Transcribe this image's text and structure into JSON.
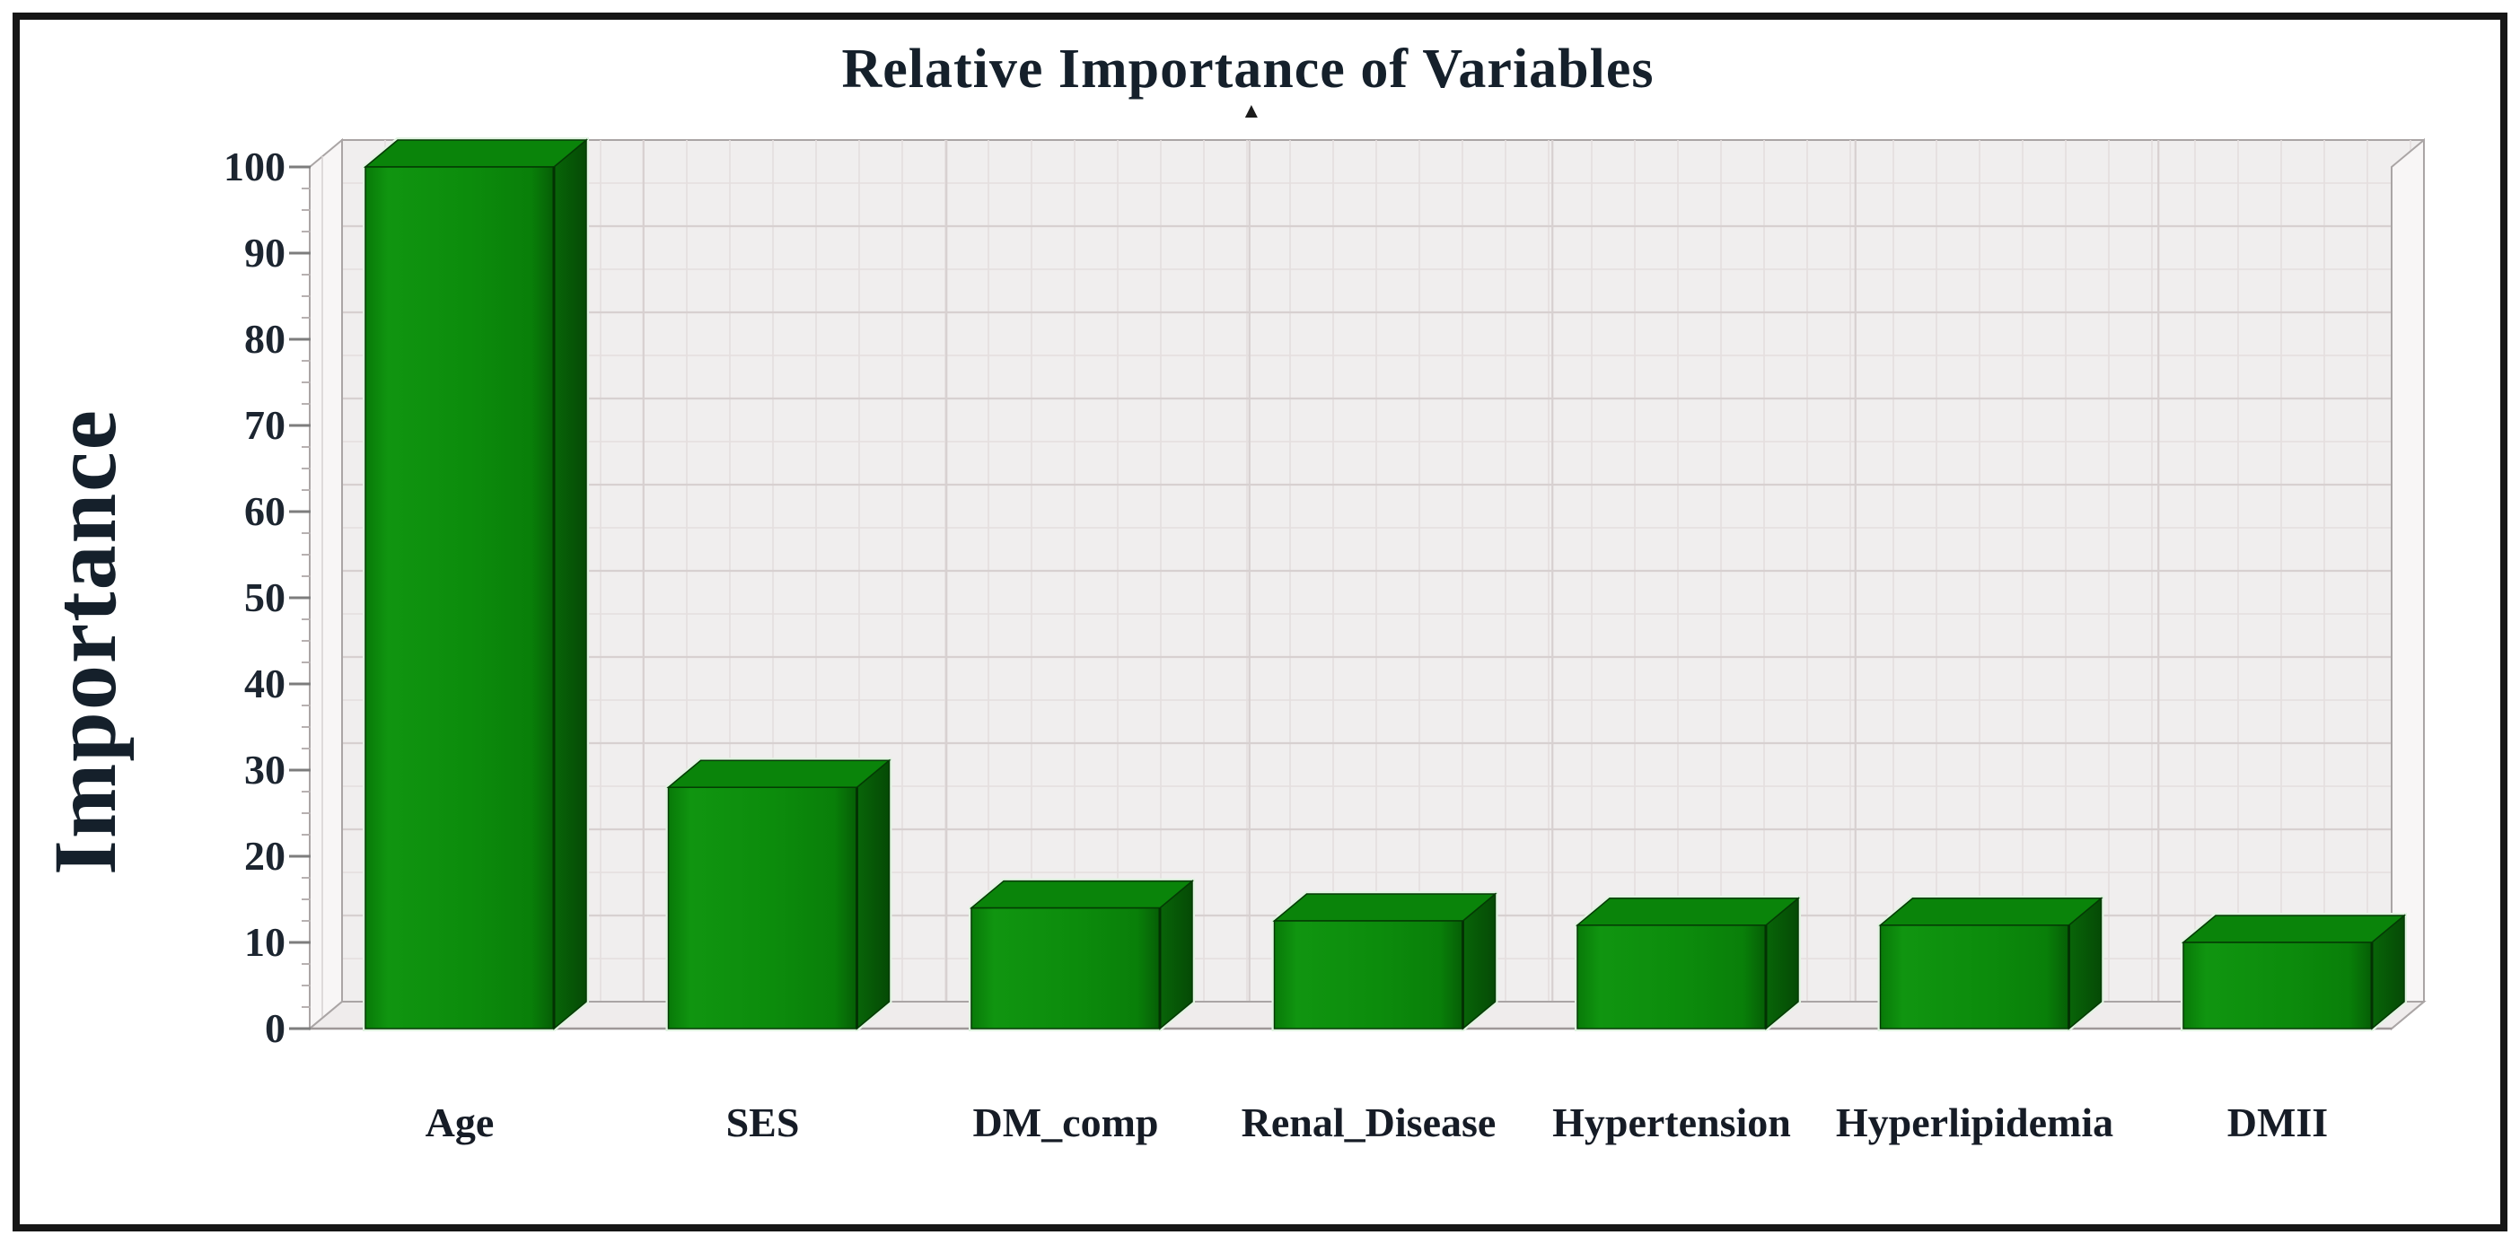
{
  "page": {
    "background_color": "#ffffff",
    "border_color": "#161616"
  },
  "chart": {
    "title": "Relative Importance of Variables",
    "y_axis_title": "Importance",
    "caret_glyph": "▲"
  },
  "chart_data": {
    "type": "bar",
    "projection": "pseudo-3d",
    "title": "Relative Importance of Variables",
    "xlabel": "",
    "ylabel": "Importance",
    "categories": [
      "Age",
      "SES",
      "DM_comp",
      "Renal_Disease",
      "Hypertension",
      "Hyperlipidemia",
      "DMII"
    ],
    "values": [
      100,
      28,
      14,
      12.5,
      12,
      12,
      10
    ],
    "ylim": [
      0,
      100
    ],
    "yticks": [
      0,
      10,
      20,
      30,
      40,
      50,
      60,
      70,
      80,
      90,
      100
    ],
    "ytick_minor_step": 2.5,
    "grid": "major and minor gridlines (horizontal and vertical) on gray back wall",
    "legend": "none",
    "bar_color": "#0d8b0d",
    "bar_top_color": "#0a840a",
    "bar_side_color": "#075c07",
    "bar_edge_color": "#043a04",
    "bar_halo_color": "#e2f4e2",
    "wall_color": "#f0eeee",
    "side_wall_color": "#f8f6f6",
    "floor_color": "#efecec",
    "major_gridline_color": "#d7d0d0",
    "minor_gridline_color": "#e4dede",
    "wall_edge_color": "#aaa5a5",
    "text_color": "#1c2530"
  }
}
